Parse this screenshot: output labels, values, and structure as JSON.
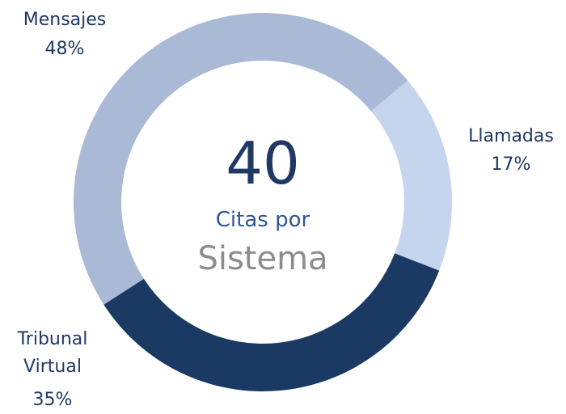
{
  "chart_data": {
    "type": "donut",
    "categories": [
      "Llamadas",
      "Tribunal Virtual",
      "Mensajes"
    ],
    "values": [
      17,
      35,
      48
    ],
    "value_labels": [
      "17%",
      "35%",
      "48%"
    ],
    "colors": [
      "#c5d5ee",
      "#1b3a63",
      "#a9b9d6"
    ],
    "total": 40,
    "center_text": [
      "Citas por",
      "Sistema"
    ]
  }
}
